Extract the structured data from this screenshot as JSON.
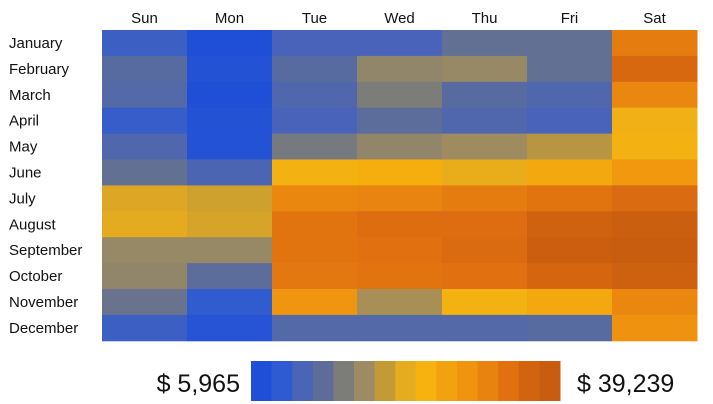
{
  "chart_data": {
    "type": "heatmap",
    "x_categories": [
      "Sun",
      "Mon",
      "Tue",
      "Wed",
      "Thu",
      "Fri",
      "Sat"
    ],
    "y_categories": [
      "January",
      "February",
      "March",
      "April",
      "May",
      "June",
      "July",
      "August",
      "September",
      "October",
      "November",
      "December"
    ],
    "values": [
      [
        9500,
        5965,
        10500,
        10500,
        13500,
        13500,
        33000
      ],
      [
        12500,
        6500,
        12500,
        17000,
        17500,
        13500,
        36000
      ],
      [
        12000,
        6000,
        11500,
        15500,
        12500,
        11500,
        31500
      ],
      [
        9000,
        6500,
        10500,
        13000,
        11500,
        10500,
        24000
      ],
      [
        11500,
        6500,
        15000,
        17000,
        18000,
        19500,
        24500
      ],
      [
        13500,
        11000,
        24500,
        25500,
        23000,
        26500,
        29000
      ],
      [
        22000,
        21000,
        31500,
        32000,
        33000,
        34000,
        35500
      ],
      [
        22500,
        21500,
        34000,
        35000,
        35000,
        37500,
        38500
      ],
      [
        17500,
        17500,
        34000,
        34500,
        35500,
        38500,
        39239
      ],
      [
        17000,
        13000,
        33500,
        34000,
        34500,
        36500,
        38000
      ],
      [
        14000,
        8500,
        29500,
        18500,
        24500,
        26500,
        31500
      ],
      [
        9500,
        7000,
        12000,
        12000,
        12000,
        12500,
        30000
      ]
    ],
    "scale": {
      "min_label": "$ 5,965",
      "max_label": "$ 39,239",
      "min": 5965,
      "max": 39239
    },
    "colors": [
      "#1f4fd6",
      "#2f5bd2",
      "#4a64b6",
      "#5d6d9a",
      "#7c7c78",
      "#9c8b63",
      "#c39a35",
      "#e6ac1f",
      "#f7b20f",
      "#f3a20f",
      "#f0940f",
      "#e8830f",
      "#e07010",
      "#d3640f",
      "#c95d0f"
    ]
  }
}
